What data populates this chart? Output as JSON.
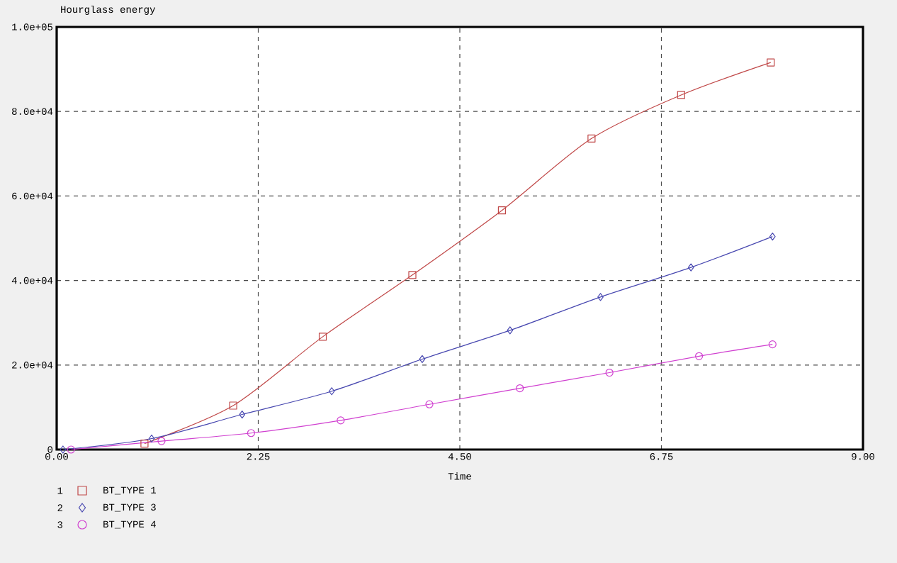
{
  "chart_data": {
    "type": "line",
    "title": "Hourglass energy",
    "xlabel": "Time",
    "xlim": [
      0,
      9
    ],
    "ylim": [
      0,
      100000
    ],
    "xticks": [
      {
        "value": 0,
        "label": "0.00"
      },
      2.25,
      {
        "value": 4.5,
        "label": "4.50"
      },
      6.75,
      {
        "value": 9,
        "label": "9.00"
      }
    ],
    "yticks": [
      0,
      {
        "value": 20000,
        "label": "2.0e+04"
      },
      {
        "value": 40000,
        "label": "4.0e+04"
      },
      {
        "value": 60000,
        "label": "6.0e+04"
      },
      {
        "value": 80000,
        "label": "8.0e+04"
      },
      {
        "value": 100000,
        "label": "1.0e+05"
      }
    ],
    "grid": true,
    "legend": "bottom left",
    "annotations": [
      "1",
      "2",
      "3"
    ],
    "series": [
      {
        "name": "BT_TYPE 1",
        "color": "#c04848",
        "marker": "square",
        "x": [
          0.98,
          1.97,
          2.97,
          3.97,
          4.97,
          5.97,
          6.97,
          7.97
        ],
        "values": [
          1400,
          10400,
          26700,
          41300,
          56600,
          73600,
          83900,
          91600
        ]
      },
      {
        "name": "BT_TYPE 3",
        "color": "#4848b0",
        "marker": "diamond",
        "x": [
          0.07,
          1.06,
          2.07,
          3.07,
          4.08,
          5.06,
          6.07,
          7.08,
          7.99
        ],
        "values": [
          0,
          2600,
          8300,
          13800,
          21400,
          28200,
          36100,
          43100,
          50400
        ]
      },
      {
        "name": "BT_TYPE 4",
        "color": "#d040d0",
        "marker": "circle",
        "x": [
          0.16,
          1.17,
          2.17,
          3.17,
          4.16,
          5.17,
          6.17,
          7.17,
          7.99
        ],
        "values": [
          0,
          2000,
          3900,
          6900,
          10700,
          14500,
          18200,
          22100,
          24900
        ]
      }
    ]
  }
}
